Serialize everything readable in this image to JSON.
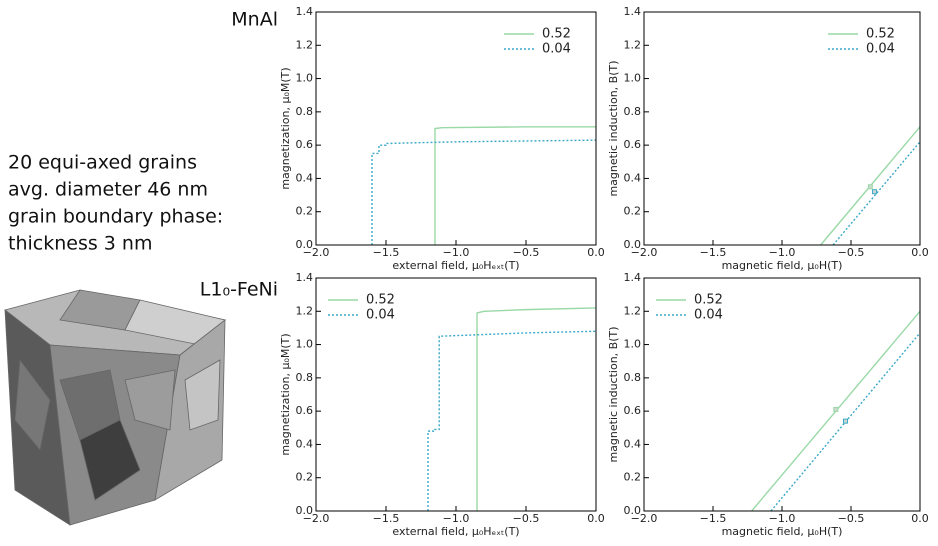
{
  "labels": {
    "top_material": "MnAl",
    "bottom_material": "L1₀-FeNi",
    "description": [
      "20 equi-axed grains",
      "avg. diameter 46 nm",
      "grain boundary phase:",
      "thickness 3 nm"
    ]
  },
  "chart_data": [
    {
      "type": "line",
      "x_label": "external field, μ₀Hₑₓₜ(T)",
      "y_label": "magnetization, μ₀M(T)",
      "xlim": [
        -2,
        0
      ],
      "ylim": [
        0,
        1.4
      ],
      "xticks": [
        {
          "value": -2,
          "label": "−2.0"
        },
        {
          "value": -1.5,
          "label": "−1.5"
        },
        {
          "value": -1,
          "label": "−1.0"
        },
        {
          "value": -0.5,
          "label": "−0.5"
        },
        {
          "value": 0,
          "label": "0.0"
        }
      ],
      "yticks": [
        {
          "value": 0,
          "label": "0.0"
        },
        0.2,
        0.4,
        0.6,
        0.8,
        {
          "value": 1,
          "label": "1.0"
        },
        1.2,
        1.4
      ],
      "legend": "upper right",
      "series": [
        {
          "name": "0.52",
          "color": "#99d9a6",
          "style": "solid",
          "x": [
            -1.15,
            -1.15,
            -1.1,
            -0.5,
            0
          ],
          "values": [
            0,
            0.7,
            0.705,
            0.71,
            0.71
          ]
        },
        {
          "name": "0.04",
          "color": "#3aa8c8",
          "style": "dotted",
          "x": [
            -1.6,
            -1.6,
            -1.55,
            -1.55,
            -1.5,
            -1.5,
            -1,
            0
          ],
          "values": [
            0,
            0.55,
            0.55,
            0.6,
            0.6,
            0.61,
            0.62,
            0.63
          ]
        }
      ]
    },
    {
      "type": "line",
      "x_label": "magnetic field, μ₀H(T)",
      "y_label": "magnetic induction, B(T)",
      "xlim": [
        -2,
        0
      ],
      "ylim": [
        0,
        1.4
      ],
      "xticks": [
        {
          "value": -2,
          "label": "−2.0"
        },
        {
          "value": -1.5,
          "label": "−1.5"
        },
        {
          "value": -1,
          "label": "−1.0"
        },
        {
          "value": -0.5,
          "label": "−0.5"
        },
        {
          "value": 0,
          "label": "0.0"
        }
      ],
      "yticks": [
        {
          "value": 0,
          "label": "0.0"
        },
        0.2,
        0.4,
        0.6,
        0.8,
        {
          "value": 1,
          "label": "1.0"
        },
        1.2,
        1.4
      ],
      "legend": "upper right",
      "series": [
        {
          "name": "0.52",
          "color": "#99d9a6",
          "style": "solid",
          "x": [
            -0.72,
            0
          ],
          "values": [
            0,
            0.71
          ],
          "marker_x": [
            -0.36
          ],
          "marker_y": [
            0.35
          ]
        },
        {
          "name": "0.04",
          "color": "#3aa8c8",
          "style": "dotted",
          "x": [
            -0.63,
            0
          ],
          "values": [
            0,
            0.62
          ],
          "marker_x": [
            -0.33
          ],
          "marker_y": [
            0.32
          ]
        }
      ]
    },
    {
      "type": "line",
      "x_label": "external field, μ₀Hₑₓₜ(T)",
      "y_label": "magnetization, μ₀M(T)",
      "xlim": [
        -2,
        0
      ],
      "ylim": [
        0,
        1.4
      ],
      "xticks": [
        {
          "value": -2,
          "label": "−2.0"
        },
        {
          "value": -1.5,
          "label": "−1.5"
        },
        {
          "value": -1,
          "label": "−1.0"
        },
        {
          "value": -0.5,
          "label": "−0.5"
        },
        {
          "value": 0,
          "label": "0.0"
        }
      ],
      "yticks": [
        {
          "value": 0,
          "label": "0.0"
        },
        0.2,
        0.4,
        0.6,
        0.8,
        {
          "value": 1,
          "label": "1.0"
        },
        1.2,
        1.4
      ],
      "legend": "upper left",
      "series": [
        {
          "name": "0.52",
          "color": "#99d9a6",
          "style": "solid",
          "x": [
            -0.85,
            -0.85,
            -0.8,
            -0.5,
            0
          ],
          "values": [
            0,
            1.19,
            1.2,
            1.21,
            1.22
          ]
        },
        {
          "name": "0.04",
          "color": "#3aa8c8",
          "style": "dotted",
          "x": [
            -1.2,
            -1.2,
            -1.15,
            -1.15,
            -1.12,
            -1.12,
            -0.5,
            0
          ],
          "values": [
            0,
            0.48,
            0.48,
            0.49,
            0.49,
            1.05,
            1.07,
            1.08
          ]
        }
      ]
    },
    {
      "type": "line",
      "x_label": "magnetic field, μ₀H(T)",
      "y_label": "magnetic induction, B(T)",
      "xlim": [
        -2,
        0
      ],
      "ylim": [
        0,
        1.4
      ],
      "xticks": [
        {
          "value": -2,
          "label": "−2.0"
        },
        {
          "value": -1.5,
          "label": "−1.5"
        },
        {
          "value": -1,
          "label": "−1.0"
        },
        {
          "value": -0.5,
          "label": "−0.5"
        },
        {
          "value": 0,
          "label": "0.0"
        }
      ],
      "yticks": [
        {
          "value": 0,
          "label": "0.0"
        },
        0.2,
        0.4,
        0.6,
        0.8,
        {
          "value": 1,
          "label": "1.0"
        },
        1.2,
        1.4
      ],
      "legend": "upper left",
      "series": [
        {
          "name": "0.52",
          "color": "#99d9a6",
          "style": "solid",
          "x": [
            -1.22,
            0
          ],
          "values": [
            0,
            1.2
          ],
          "marker_x": [
            -0.61
          ],
          "marker_y": [
            0.61
          ]
        },
        {
          "name": "0.04",
          "color": "#3aa8c8",
          "style": "dotted",
          "x": [
            -1.08,
            0
          ],
          "values": [
            0,
            1.07
          ],
          "marker_x": [
            -0.54
          ],
          "marker_y": [
            0.54
          ]
        }
      ]
    }
  ]
}
